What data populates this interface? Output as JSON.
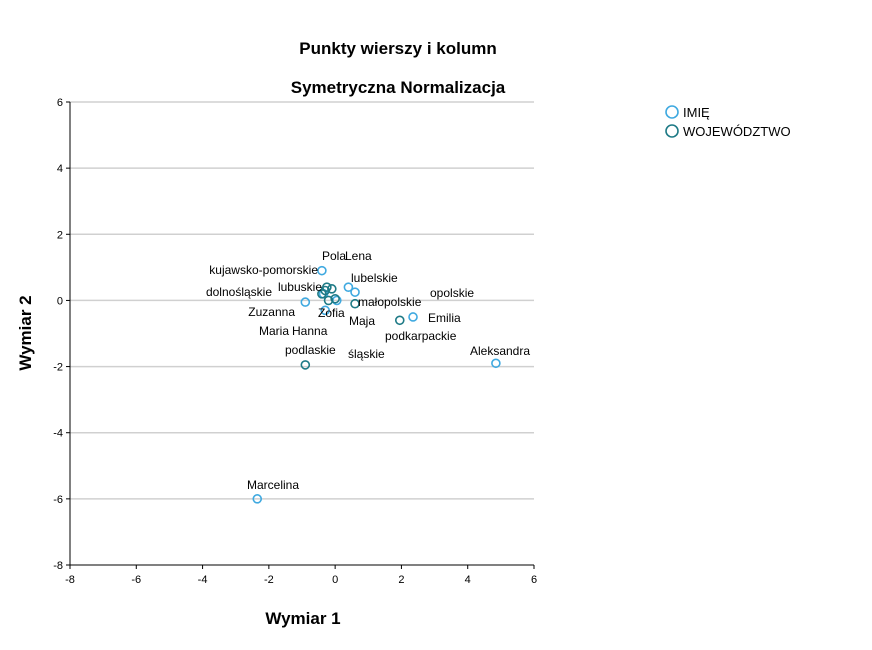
{
  "chart_data": {
    "type": "scatter",
    "title": "Punkty wierszy i kolumn",
    "subtitle": "Symetryczna Normalizacja",
    "xlabel": "Wymiar 1",
    "ylabel": "Wymiar 2",
    "xlim": [
      -8,
      6
    ],
    "ylim": [
      -8,
      6
    ],
    "xticks": [
      "-8",
      "-6",
      "-4",
      "-2",
      "0",
      "2",
      "4",
      "6"
    ],
    "yticks": [
      "6",
      "4",
      "2",
      "0",
      "-2",
      "-4",
      "-6",
      "-8"
    ],
    "grid": "horizontal",
    "legend_position": "top-right",
    "series": [
      {
        "name": "IMIĘ",
        "color": "#3fa9e0",
        "points": [
          {
            "label": "Lena",
            "x": 0.4,
            "y": 0.4
          },
          {
            "label": "Pola",
            "x": -0.4,
            "y": 0.9
          },
          {
            "label": "Zuzanna",
            "x": -0.9,
            "y": -0.05
          },
          {
            "label": "Zofia",
            "x": -0.3,
            "y": -0.3
          },
          {
            "label": "Maria",
            "x": -0.35,
            "y": 0.2
          },
          {
            "label": "Hanna",
            "x": 0.05,
            "y": 0.0
          },
          {
            "label": "Maja",
            "x": 0.6,
            "y": 0.25
          },
          {
            "label": "Emilia",
            "x": 2.35,
            "y": -0.5
          },
          {
            "label": "Aleksandra",
            "x": 4.85,
            "y": -1.9
          },
          {
            "label": "Marcelina",
            "x": -2.35,
            "y": -6.0
          }
        ]
      },
      {
        "name": "WOJEWÓDZTWO",
        "color": "#1e7a86",
        "points": [
          {
            "label": "kujawsko-pomorskie",
            "x": -0.25,
            "y": 0.4
          },
          {
            "label": "lubuskie",
            "x": -0.1,
            "y": 0.35
          },
          {
            "label": "dolnośląskie",
            "x": -0.4,
            "y": 0.2
          },
          {
            "label": "lubelskie",
            "x": 0.0,
            "y": 0.05
          },
          {
            "label": "małopolskie",
            "x": 0.6,
            "y": -0.1
          },
          {
            "label": "opolskie",
            "x": 1.95,
            "y": -0.6
          },
          {
            "label": "podkarpackie",
            "x": -0.2,
            "y": 0.0
          },
          {
            "label": "śląskie",
            "x": -0.3,
            "y": 0.3
          },
          {
            "label": "podlaskie",
            "x": -0.9,
            "y": -1.95
          }
        ]
      }
    ]
  }
}
